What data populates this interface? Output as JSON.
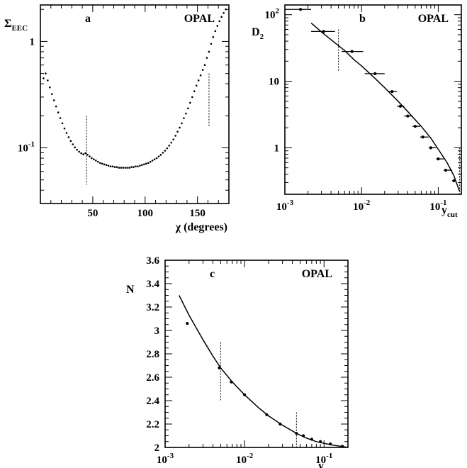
{
  "chart_data": [
    {
      "panel": "a",
      "type": "scatter",
      "experiment_label": "OPAL",
      "ylabel": "Σ",
      "ylabel_sub": "EEC",
      "xlabel": "χ (degrees)",
      "xlim": [
        0,
        180
      ],
      "ylim": [
        0.03,
        2.2
      ],
      "yscale": "log",
      "x_ticks": [
        50,
        100,
        150
      ],
      "y_ticks": [
        {
          "value": 1,
          "label": "1"
        },
        {
          "value": 0.1,
          "label": "10",
          "sup": "-1"
        }
      ],
      "fit_range_lines": [
        44,
        161
      ],
      "series": [
        {
          "x": [
            3,
            5,
            7,
            9,
            11,
            13,
            15,
            17,
            19,
            21,
            23,
            25,
            27,
            29,
            31,
            33,
            35,
            37,
            39,
            41,
            43,
            45,
            47,
            49,
            51,
            53,
            55,
            57,
            59,
            61,
            63,
            65,
            67,
            69,
            71,
            73,
            75,
            77,
            79,
            81,
            83,
            85,
            87,
            89,
            91,
            93,
            95,
            97,
            99,
            101,
            103,
            105,
            107,
            109,
            111,
            113,
            115,
            117,
            119,
            121,
            123,
            125,
            127,
            129,
            131,
            133,
            135,
            137,
            139,
            141,
            143,
            145,
            147,
            149,
            151,
            153,
            155,
            157,
            159,
            161,
            163,
            165,
            167,
            169,
            171,
            173,
            175,
            177
          ],
          "y": [
            0.45,
            0.5,
            0.43,
            0.37,
            0.32,
            0.28,
            0.245,
            0.215,
            0.19,
            0.17,
            0.152,
            0.138,
            0.126,
            0.116,
            0.108,
            0.101,
            0.096,
            0.092,
            0.089,
            0.087,
            0.089,
            0.086,
            0.083,
            0.08,
            0.078,
            0.076,
            0.074,
            0.072,
            0.071,
            0.07,
            0.069,
            0.068,
            0.067,
            0.067,
            0.066,
            0.066,
            0.065,
            0.065,
            0.065,
            0.065,
            0.065,
            0.065,
            0.066,
            0.066,
            0.067,
            0.067,
            0.068,
            0.069,
            0.07,
            0.071,
            0.072,
            0.074,
            0.076,
            0.078,
            0.08,
            0.083,
            0.086,
            0.09,
            0.094,
            0.099,
            0.105,
            0.112,
            0.12,
            0.13,
            0.142,
            0.155,
            0.17,
            0.19,
            0.21,
            0.235,
            0.265,
            0.3,
            0.34,
            0.385,
            0.43,
            0.48,
            0.54,
            0.6,
            0.7,
            0.8,
            0.95,
            1.1,
            1.25,
            1.4,
            1.55,
            1.7,
            1.85,
            2.0
          ]
        }
      ]
    },
    {
      "panel": "b",
      "type": "scatter",
      "experiment_label": "OPAL",
      "ylabel": "D",
      "ylabel_sub": "2",
      "xlabel": "y",
      "xlabel_sub": "cut",
      "xlim": [
        0.001,
        0.2
      ],
      "ylim": [
        0.2,
        140
      ],
      "xscale": "log",
      "yscale": "log",
      "x_ticks": [
        {
          "value": 0.001,
          "label": "10",
          "sup": "-3"
        },
        {
          "value": 0.01,
          "label": "10",
          "sup": "-2"
        },
        {
          "value": 0.1,
          "label": "10",
          "sup": "-1"
        }
      ],
      "y_ticks": [
        {
          "value": 100,
          "label": "10",
          "sup": "2"
        },
        {
          "value": 10,
          "label": "10"
        },
        {
          "value": 1,
          "label": "1"
        }
      ],
      "fit_range_lines": [
        0.005,
        0.19
      ],
      "series": [
        {
          "name": "data",
          "x": [
            0.0016,
            0.0032,
            0.0075,
            0.015,
            0.025,
            0.032,
            0.04,
            0.05,
            0.063,
            0.08,
            0.1,
            0.125,
            0.16
          ],
          "y": [
            120,
            56,
            28,
            13,
            7,
            4.2,
            3.0,
            2.1,
            1.45,
            1.0,
            0.68,
            0.46,
            0.32
          ],
          "xerr_low": [
            0.001,
            0.0022,
            0.0055,
            0.011,
            0.022,
            0.029,
            0.036,
            0.046,
            0.058,
            0.075,
            0.094,
            0.118,
            0.152
          ],
          "xerr_high": [
            0.0022,
            0.0045,
            0.0105,
            0.02,
            0.029,
            0.036,
            0.046,
            0.058,
            0.075,
            0.094,
            0.118,
            0.152,
            0.168
          ]
        },
        {
          "name": "fit",
          "x": [
            0.0022,
            0.003,
            0.004,
            0.006,
            0.008,
            0.01,
            0.015,
            0.02,
            0.03,
            0.04,
            0.06,
            0.08,
            0.1,
            0.13,
            0.16,
            0.19
          ],
          "y": [
            75,
            55,
            42,
            29,
            21,
            17,
            11,
            8,
            5,
            3.5,
            2.1,
            1.4,
            0.95,
            0.6,
            0.38,
            0.22
          ]
        }
      ]
    },
    {
      "panel": "c",
      "type": "scatter",
      "experiment_label": "OPAL",
      "ylabel": "N",
      "xlabel": "y",
      "xlabel_sub": "cut",
      "xlim": [
        0.001,
        0.2
      ],
      "ylim": [
        2,
        3.6
      ],
      "xscale": "log",
      "x_ticks": [
        {
          "value": 0.001,
          "label": "10",
          "sup": "-3"
        },
        {
          "value": 0.01,
          "label": "10",
          "sup": "-2"
        },
        {
          "value": 0.1,
          "label": "10",
          "sup": "-1"
        }
      ],
      "y_ticks": [
        "2",
        "2.2",
        "2.4",
        "2.6",
        "2.8",
        "3",
        "3.2",
        "3.4",
        "3.6"
      ],
      "fit_range_lines": [
        0.005,
        0.045
      ],
      "series": [
        {
          "name": "data",
          "x": [
            0.0019,
            0.0048,
            0.0068,
            0.01,
            0.019,
            0.028,
            0.045,
            0.055,
            0.07,
            0.09,
            0.12,
            0.17
          ],
          "y": [
            3.06,
            2.68,
            2.56,
            2.45,
            2.28,
            2.2,
            2.12,
            2.1,
            2.07,
            2.05,
            2.03,
            2.01
          ]
        },
        {
          "name": "fit",
          "x": [
            0.0015,
            0.002,
            0.003,
            0.004,
            0.005,
            0.007,
            0.01,
            0.015,
            0.02,
            0.03,
            0.045,
            0.06,
            0.08,
            0.1,
            0.13,
            0.17,
            0.2
          ],
          "y": [
            3.3,
            3.13,
            2.92,
            2.78,
            2.68,
            2.56,
            2.45,
            2.34,
            2.27,
            2.19,
            2.12,
            2.08,
            2.05,
            2.035,
            2.02,
            2.008,
            2.0
          ]
        }
      ]
    }
  ]
}
